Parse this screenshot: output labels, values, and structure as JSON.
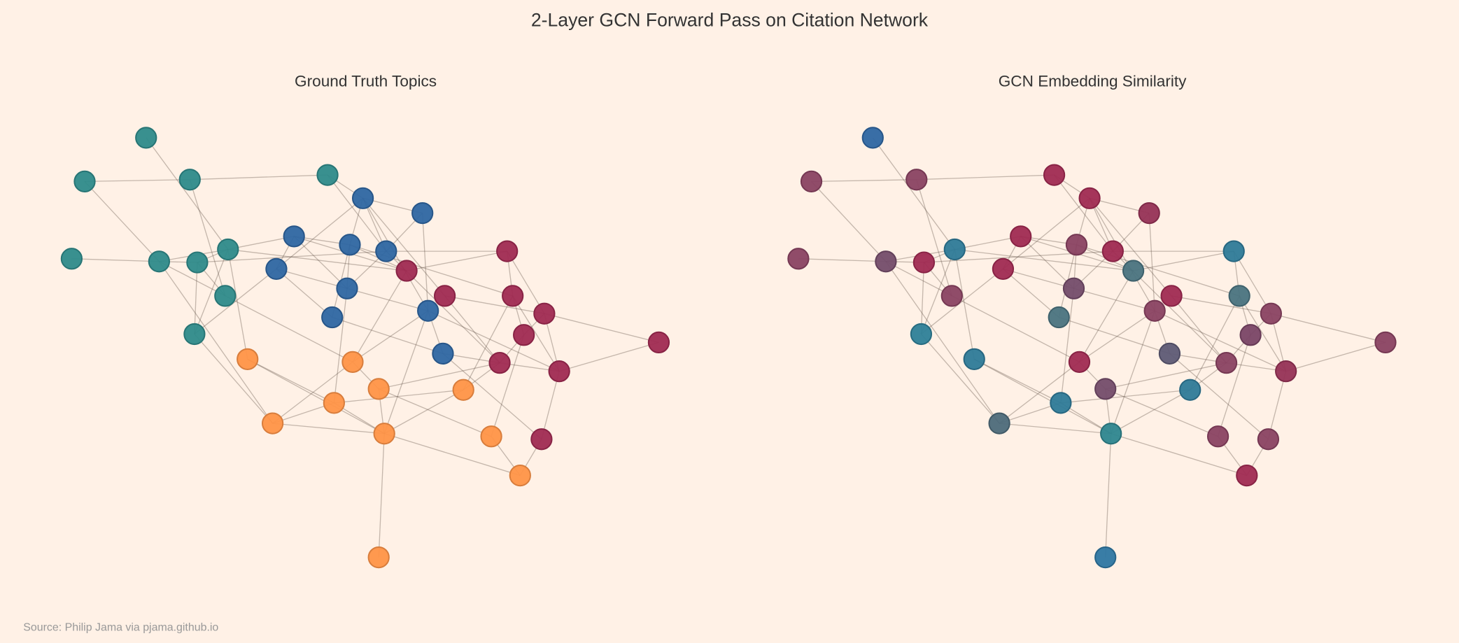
{
  "figure": {
    "title": "2-Layer GCN Forward Pass on Citation Network",
    "source": "Source: Philip Jama via pjama.github.io"
  },
  "panels": [
    {
      "title": "Ground Truth Topics"
    },
    {
      "title": "GCN Embedding Similarity"
    }
  ],
  "topic_colors": {
    "teal": "#2e8a8a",
    "blue": "#2e66a2",
    "crimson": "#a02a52",
    "orange": "#ff9447"
  },
  "nodes": {
    "ground_truth_topic": [
      "teal",
      "teal",
      "teal",
      "teal",
      "teal",
      "teal",
      "teal",
      "teal",
      "teal",
      "teal",
      "blue",
      "blue",
      "blue",
      "blue",
      "blue",
      "blue",
      "blue",
      "blue",
      "blue",
      "blue",
      "crimson",
      "crimson",
      "crimson",
      "crimson",
      "crimson",
      "crimson",
      "crimson",
      "crimson",
      "crimson",
      "crimson",
      "orange",
      "orange",
      "orange",
      "orange",
      "orange",
      "orange",
      "orange",
      "orange",
      "orange",
      "orange"
    ],
    "embedding_colors": [
      "#2e66a2",
      "#8a4262",
      "#8a4262",
      "#a02a52",
      "#8a4262",
      "#744c6a",
      "#a02a52",
      "#2e7a98",
      "#8a4262",
      "#2e8098",
      "#a02a52",
      "#963256",
      "#a02a52",
      "#8a4262",
      "#a02a52",
      "#a02a52",
      "#744c6a",
      "#4a7380",
      "#8a4262",
      "#5e5a75",
      "#2e7a98",
      "#4a7380",
      "#a02a52",
      "#4a7380",
      "#8a4262",
      "#7a4566",
      "#8a4262",
      "#963256",
      "#8a4262",
      "#8a4262",
      "#2e7a98",
      "#a02a52",
      "#744c6a",
      "#2e7a98",
      "#2e7a98",
      "#4d6a7a",
      "#2e868f",
      "#8a4262",
      "#a02a52",
      "#2e76a2"
    ]
  },
  "edges": [
    [
      0,
      7
    ],
    [
      1,
      2
    ],
    [
      2,
      3
    ],
    [
      1,
      5
    ],
    [
      2,
      8
    ],
    [
      4,
      5
    ],
    [
      5,
      6
    ],
    [
      5,
      7
    ],
    [
      6,
      7
    ],
    [
      5,
      35
    ],
    [
      5,
      31
    ],
    [
      6,
      8
    ],
    [
      6,
      9
    ],
    [
      7,
      9
    ],
    [
      7,
      30
    ],
    [
      7,
      12
    ],
    [
      7,
      21
    ],
    [
      6,
      14
    ],
    [
      9,
      15
    ],
    [
      9,
      35
    ],
    [
      3,
      10
    ],
    [
      3,
      14
    ],
    [
      10,
      11
    ],
    [
      10,
      13
    ],
    [
      10,
      14
    ],
    [
      10,
      15
    ],
    [
      10,
      22
    ],
    [
      10,
      18
    ],
    [
      11,
      14
    ],
    [
      11,
      18
    ],
    [
      12,
      13
    ],
    [
      12,
      15
    ],
    [
      12,
      16
    ],
    [
      12,
      21
    ],
    [
      13,
      21
    ],
    [
      13,
      23
    ],
    [
      13,
      16
    ],
    [
      13,
      17
    ],
    [
      14,
      16
    ],
    [
      14,
      20
    ],
    [
      14,
      26
    ],
    [
      15,
      16
    ],
    [
      15,
      17
    ],
    [
      16,
      18
    ],
    [
      16,
      33
    ],
    [
      17,
      19
    ],
    [
      21,
      20
    ],
    [
      21,
      31
    ],
    [
      22,
      24
    ],
    [
      22,
      26
    ],
    [
      20,
      23
    ],
    [
      20,
      24
    ],
    [
      23,
      25
    ],
    [
      23,
      27
    ],
    [
      23,
      34
    ],
    [
      24,
      28
    ],
    [
      24,
      25
    ],
    [
      24,
      27
    ],
    [
      25,
      26
    ],
    [
      25,
      37
    ],
    [
      26,
      27
    ],
    [
      26,
      34
    ],
    [
      26,
      32
    ],
    [
      26,
      19
    ],
    [
      27,
      28
    ],
    [
      27,
      29
    ],
    [
      29,
      19
    ],
    [
      38,
      29
    ],
    [
      18,
      19
    ],
    [
      18,
      31
    ],
    [
      18,
      36
    ],
    [
      18,
      27
    ],
    [
      31,
      32
    ],
    [
      32,
      36
    ],
    [
      32,
      37
    ],
    [
      33,
      34
    ],
    [
      33,
      36
    ],
    [
      35,
      36
    ],
    [
      36,
      38
    ],
    [
      36,
      39
    ],
    [
      37,
      38
    ],
    [
      30,
      33
    ],
    [
      30,
      36
    ],
    [
      35,
      33
    ],
    [
      35,
      31
    ],
    [
      34,
      36
    ]
  ]
}
